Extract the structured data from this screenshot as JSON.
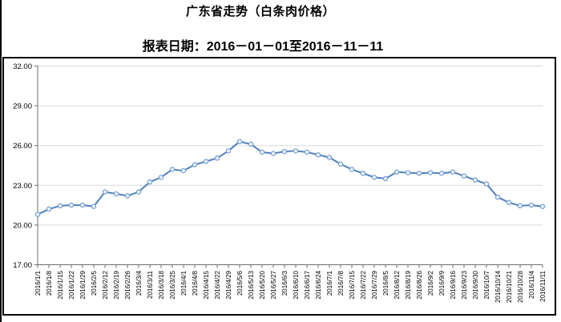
{
  "header": {
    "title": "广东省走势（白条肉价格）",
    "subtitle": "报表日期：2016－01－01至2016－11－11"
  },
  "chart_data": {
    "type": "line",
    "title": "广东省走势（白条肉价格）",
    "subtitle": "报表日期：2016－01－01至2016－11－11",
    "x": [
      "2016/1/1",
      "2016/1/8",
      "2016/1/15",
      "2016/1/22",
      "2016/1/29",
      "2016/2/5",
      "2016/2/12",
      "2016/2/19",
      "2016/2/26",
      "2016/3/4",
      "2016/3/11",
      "2016/3/18",
      "2016/3/25",
      "2016/4/1",
      "2016/4/8",
      "2016/4/15",
      "2016/4/22",
      "2016/4/29",
      "2016/5/6",
      "2016/5/13",
      "2016/5/20",
      "2016/5/27",
      "2016/6/3",
      "2016/6/10",
      "2016/6/17",
      "2016/6/24",
      "2016/7/1",
      "2016/7/8",
      "2016/7/15",
      "2016/7/22",
      "2016/7/29",
      "2016/8/5",
      "2016/8/12",
      "2016/8/19",
      "2016/8/26",
      "2016/9/2",
      "2016/9/9",
      "2016/9/16",
      "2016/9/23",
      "2016/9/30",
      "2016/10/7",
      "2016/10/14",
      "2016/10/21",
      "2016/10/28",
      "2016/11/4",
      "2016/11/11"
    ],
    "series": [
      {
        "name": "白条肉价格",
        "values": [
          20.8,
          21.2,
          21.45,
          21.5,
          21.5,
          21.4,
          22.5,
          22.35,
          22.2,
          22.5,
          23.25,
          23.6,
          24.2,
          24.1,
          24.55,
          24.8,
          25.05,
          25.6,
          26.3,
          26.1,
          25.5,
          25.4,
          25.55,
          25.6,
          25.5,
          25.3,
          25.1,
          24.6,
          24.2,
          23.9,
          23.6,
          23.5,
          24.0,
          23.95,
          23.9,
          23.95,
          23.9,
          24.0,
          23.7,
          23.4,
          23.1,
          22.1,
          21.7,
          21.45,
          21.5,
          21.4
        ]
      }
    ],
    "ylim": [
      17,
      32
    ],
    "ytick_labels": [
      "17.00",
      "20.00",
      "23.00",
      "26.00",
      "29.00",
      "32.00"
    ],
    "grid": true,
    "legend_position": "none",
    "colors": {
      "line": "#4f81bd",
      "marker_stroke": "#7ba3d6",
      "marker_fill": "#edf3fa",
      "gridline": "#d9d9d9",
      "axis": "#6e6e6e",
      "label_text": "#000000",
      "frame_border": "#000000"
    }
  }
}
